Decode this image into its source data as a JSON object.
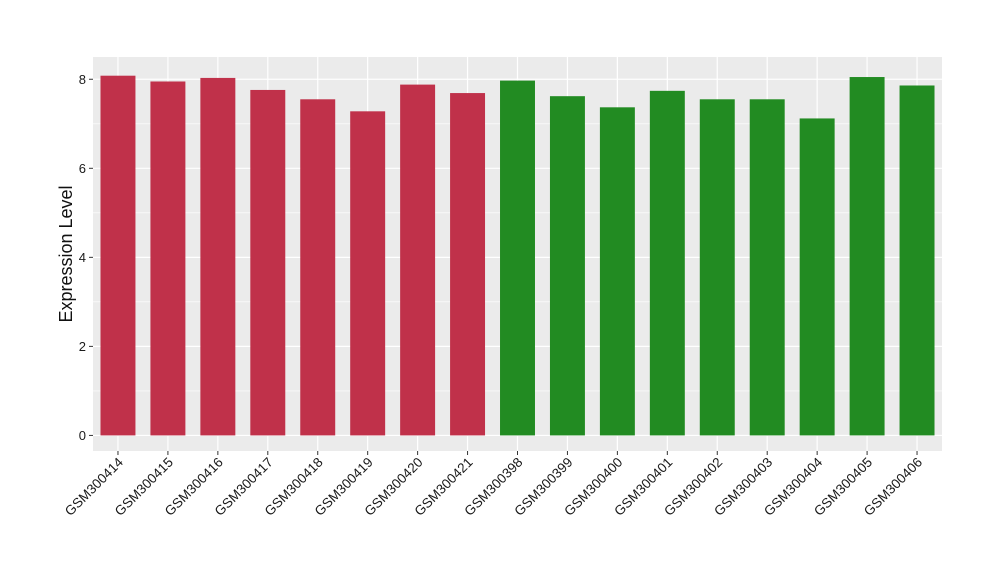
{
  "chart_data": {
    "type": "bar",
    "title": "",
    "xlabel": "",
    "ylabel": "Expression Level",
    "ylim": [
      -0.35,
      8.5
    ],
    "yticks": [
      0,
      2,
      4,
      6,
      8
    ],
    "grid": true,
    "legend": "none",
    "categories": [
      "GSM300414",
      "GSM300415",
      "GSM300416",
      "GSM300417",
      "GSM300418",
      "GSM300419",
      "GSM300420",
      "GSM300421",
      "GSM300398",
      "GSM300399",
      "GSM300400",
      "GSM300401",
      "GSM300402",
      "GSM300403",
      "GSM300404",
      "GSM300405",
      "GSM300406"
    ],
    "values": [
      8.08,
      7.95,
      8.03,
      7.76,
      7.55,
      7.28,
      7.88,
      7.69,
      7.97,
      7.62,
      7.37,
      7.74,
      7.55,
      7.55,
      7.12,
      8.05,
      7.86
    ],
    "bar_colors": [
      "#c0314a",
      "#c0314a",
      "#c0314a",
      "#c0314a",
      "#c0314a",
      "#c0314a",
      "#c0314a",
      "#c0314a",
      "#228b22",
      "#228b22",
      "#228b22",
      "#228b22",
      "#228b22",
      "#228b22",
      "#228b22",
      "#228b22",
      "#228b22"
    ],
    "panel_background": "#ebebeb",
    "grid_color": "#ffffff"
  }
}
